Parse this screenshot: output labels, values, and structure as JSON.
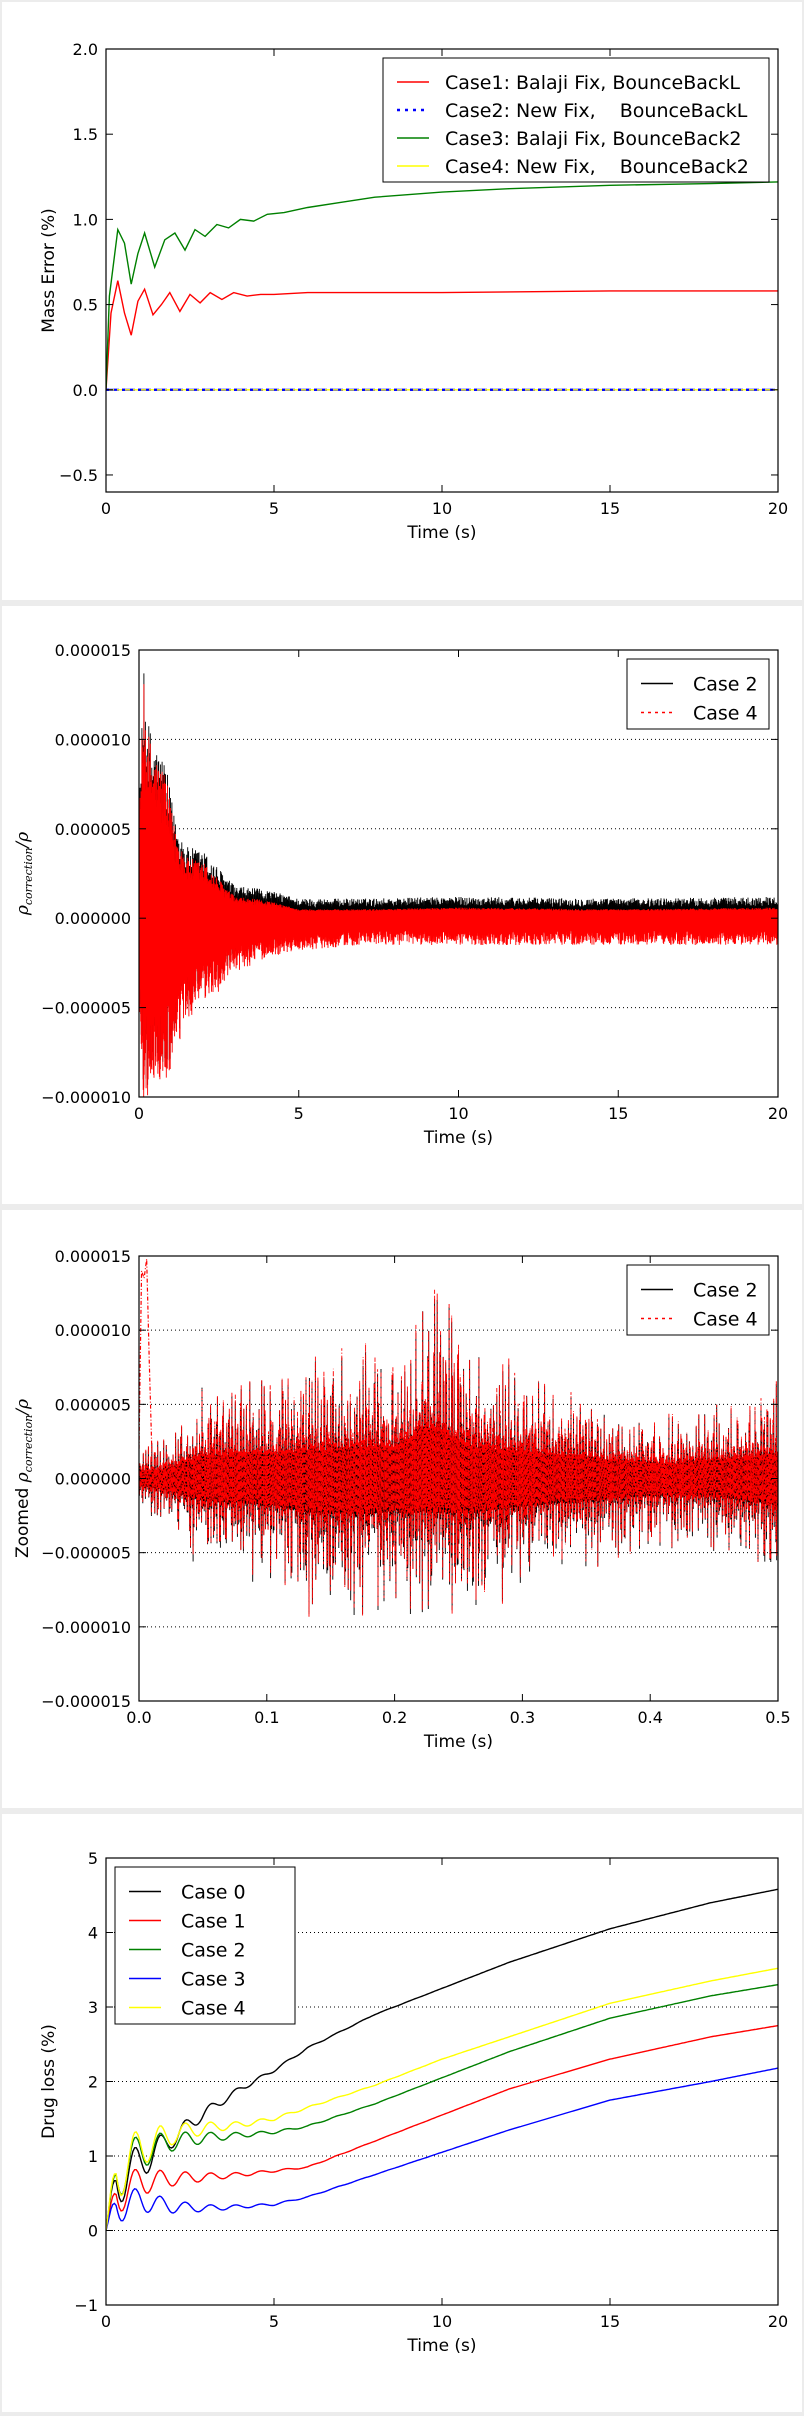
{
  "chart_data": [
    {
      "type": "line",
      "xlabel": "Time (s)",
      "ylabel": "Mass Error (%)",
      "xlim": [
        0,
        20
      ],
      "ylim": [
        -0.6,
        2.0
      ],
      "xticks": [
        0,
        5,
        10,
        15,
        20
      ],
      "xtick_labels": [
        "0",
        "5",
        "10",
        "15",
        "20"
      ],
      "yticks": [
        -0.5,
        0.0,
        0.5,
        1.0,
        1.5,
        2.0
      ],
      "ytick_labels": [
        "−0.5",
        "0.0",
        "0.5",
        "1.0",
        "1.5",
        "2.0"
      ],
      "grid": false,
      "legend_position": "top-right",
      "series": [
        {
          "name": "Case1: Balaji Fix, BounceBackL",
          "color": "#ff0000",
          "style": "solid",
          "x": [
            0,
            0.15,
            0.35,
            0.55,
            0.75,
            0.95,
            1.15,
            1.4,
            1.65,
            1.9,
            2.2,
            2.5,
            2.8,
            3.1,
            3.45,
            3.8,
            4.2,
            4.6,
            5,
            6,
            8,
            10,
            15,
            20
          ],
          "y": [
            0,
            0.45,
            0.64,
            0.45,
            0.32,
            0.52,
            0.59,
            0.44,
            0.5,
            0.57,
            0.46,
            0.56,
            0.51,
            0.57,
            0.53,
            0.57,
            0.55,
            0.56,
            0.56,
            0.57,
            0.57,
            0.57,
            0.58,
            0.58
          ]
        },
        {
          "name": "Case2: New Fix,    BounceBackL",
          "color": "#0000ff",
          "style": "dashdot",
          "x": [
            0,
            20
          ],
          "y": [
            0.0,
            0.0
          ]
        },
        {
          "name": "Case3: Balaji Fix, BounceBack2",
          "color": "#008000",
          "style": "solid",
          "x": [
            0,
            0.1,
            0.35,
            0.55,
            0.75,
            0.95,
            1.15,
            1.45,
            1.75,
            2.05,
            2.35,
            2.65,
            2.95,
            3.3,
            3.65,
            4.0,
            4.4,
            4.8,
            5.3,
            6,
            7,
            8,
            10,
            12,
            15,
            18,
            20
          ],
          "y": [
            0,
            0.55,
            0.94,
            0.86,
            0.62,
            0.8,
            0.92,
            0.72,
            0.88,
            0.92,
            0.82,
            0.94,
            0.9,
            0.97,
            0.95,
            1.0,
            0.99,
            1.03,
            1.04,
            1.07,
            1.1,
            1.13,
            1.16,
            1.18,
            1.2,
            1.21,
            1.22
          ]
        },
        {
          "name": "Case4: New Fix,    BounceBack2",
          "color": "#ffff00",
          "style": "solid",
          "x": [
            0,
            20
          ],
          "y": [
            0.0,
            0.0
          ]
        }
      ]
    },
    {
      "type": "line",
      "xlabel": "Time (s)",
      "ylabel_math": "ρ",
      "ylabel_sub": "correction",
      "ylabel_tail": "/ρ",
      "xlim": [
        0,
        20
      ],
      "ylim": [
        -1e-05,
        1.5e-05
      ],
      "xticks": [
        0,
        5,
        10,
        15,
        20
      ],
      "xtick_labels": [
        "0",
        "5",
        "10",
        "15",
        "20"
      ],
      "yticks": [
        -1e-05,
        -5e-06,
        0,
        5e-06,
        1e-05,
        1.5e-05
      ],
      "ytick_labels": [
        "−0.000010",
        "−0.000005",
        "0.000000",
        "0.000005",
        "0.000010",
        "0.000015"
      ],
      "grid": "horizontal dotted",
      "legend_position": "top-right",
      "envelope": {
        "t": [
          0,
          0.15,
          0.3,
          0.5,
          0.8,
          1.1,
          1.5,
          2,
          2.5,
          3,
          4,
          5,
          7,
          10,
          15,
          20
        ],
        "upper": [
          6e-06,
          1.38e-05,
          1.1e-05,
          9.8e-06,
          9e-06,
          5.8e-06,
          4e-06,
          3.8e-06,
          2.8e-06,
          1.8e-06,
          1.6e-06,
          1.1e-06,
          1.1e-06,
          1.2e-06,
          1.1e-06,
          1.2e-06
        ],
        "lower": [
          -5e-06,
          -9.8e-06,
          -9.4e-06,
          -8.5e-06,
          -9e-06,
          -7.5e-06,
          -5.2e-06,
          -4.2e-06,
          -3.5e-06,
          -2.5e-06,
          -1.6e-06,
          -1.2e-06,
          -9e-07,
          -9e-07,
          -9e-07,
          -9e-07
        ]
      },
      "series": [
        {
          "name": "Case 2",
          "color": "#000000",
          "style": "solid"
        },
        {
          "name": "Case 4",
          "color": "#ff0000",
          "style": "dashdot"
        }
      ]
    },
    {
      "type": "line",
      "xlabel": "Time (s)",
      "ylabel_prefix": "Zoomed ",
      "ylabel_math": "ρ",
      "ylabel_sub": "correction",
      "ylabel_tail": "/ρ",
      "xlim": [
        0,
        0.5
      ],
      "ylim": [
        -1.5e-05,
        1.5e-05
      ],
      "xticks": [
        0,
        0.1,
        0.2,
        0.3,
        0.4,
        0.5
      ],
      "xtick_labels": [
        "0.0",
        "0.1",
        "0.2",
        "0.3",
        "0.4",
        "0.5"
      ],
      "yticks": [
        -1.5e-05,
        -1e-05,
        -5e-06,
        0,
        5e-06,
        1e-05,
        1.5e-05
      ],
      "ytick_labels": [
        "−0.000015",
        "−0.000010",
        "−0.000005",
        "0.000000",
        "0.000005",
        "0.000010",
        "0.000015"
      ],
      "grid": "horizontal dotted",
      "legend_position": "top-right",
      "envelope": {
        "t": [
          0,
          0.02,
          0.05,
          0.1,
          0.14,
          0.18,
          0.2,
          0.23,
          0.26,
          0.3,
          0.34,
          0.38,
          0.42,
          0.46,
          0.5
        ],
        "upper": [
          2e-06,
          2.5e-06,
          6e-06,
          6.5e-06,
          7.5e-06,
          8.5e-06,
          8e-06,
          1.38e-05,
          8.5e-06,
          7.2e-06,
          5.5e-06,
          4.5e-06,
          4e-06,
          5e-06,
          6.2e-06
        ],
        "lower": [
          -2e-06,
          -3e-06,
          -6e-06,
          -6.8e-06,
          -9.5e-06,
          -9.5e-06,
          -8.5e-06,
          -8.8e-06,
          -9.2e-06,
          -7.5e-06,
          -6e-06,
          -5e-06,
          -4.5e-06,
          -5e-06,
          -7e-06
        ]
      },
      "series": [
        {
          "name": "Case 2",
          "color": "#000000",
          "style": "solid"
        },
        {
          "name": "Case 4",
          "color": "#ff0000",
          "style": "dashdot",
          "x": [
            0.0,
            0.002,
            0.004,
            0.006,
            0.008,
            0.01
          ],
          "y": [
            2e-06,
            1.4e-05,
            1.35e-05,
            1.48e-05,
            8e-06,
            2e-06
          ]
        }
      ]
    },
    {
      "type": "line",
      "xlabel": "Time (s)",
      "ylabel": "Drug loss (%)",
      "xlim": [
        0,
        20
      ],
      "ylim": [
        -1,
        5
      ],
      "xticks": [
        0,
        5,
        10,
        15,
        20
      ],
      "xtick_labels": [
        "0",
        "5",
        "10",
        "15",
        "20"
      ],
      "yticks": [
        -1,
        0,
        1,
        2,
        3,
        4,
        5
      ],
      "ytick_labels": [
        "−1",
        "0",
        "1",
        "2",
        "3",
        "4",
        "5"
      ],
      "grid": "horizontal dotted",
      "legend_position": "top-left",
      "series": [
        {
          "name": "Case 0",
          "color": "#000000",
          "style": "solid",
          "base": [
            [
              0,
              0.55
            ],
            [
              1,
              0.9
            ],
            [
              2,
              1.25
            ],
            [
              3,
              1.6
            ],
            [
              4,
              1.9
            ],
            [
              5,
              2.15
            ],
            [
              6,
              2.45
            ],
            [
              8,
              2.9
            ],
            [
              10,
              3.25
            ],
            [
              12,
              3.6
            ],
            [
              15,
              4.05
            ],
            [
              18,
              4.4
            ],
            [
              20,
              4.58
            ]
          ],
          "osc": 0.45
        },
        {
          "name": "Case 1",
          "color": "#ff0000",
          "style": "solid",
          "base": [
            [
              0,
              0.4
            ],
            [
              1,
              0.65
            ],
            [
              2,
              0.7
            ],
            [
              3,
              0.72
            ],
            [
              4,
              0.75
            ],
            [
              5,
              0.8
            ],
            [
              6,
              0.85
            ],
            [
              8,
              1.2
            ],
            [
              10,
              1.55
            ],
            [
              12,
              1.9
            ],
            [
              15,
              2.3
            ],
            [
              18,
              2.6
            ],
            [
              20,
              2.75
            ]
          ],
          "osc": 0.35
        },
        {
          "name": "Case 2",
          "color": "#008000",
          "style": "solid",
          "base": [
            [
              0,
              0.6
            ],
            [
              1,
              1.05
            ],
            [
              2,
              1.2
            ],
            [
              3,
              1.25
            ],
            [
              4,
              1.28
            ],
            [
              5,
              1.32
            ],
            [
              6,
              1.4
            ],
            [
              8,
              1.7
            ],
            [
              10,
              2.05
            ],
            [
              12,
              2.4
            ],
            [
              15,
              2.85
            ],
            [
              18,
              3.15
            ],
            [
              20,
              3.3
            ]
          ],
          "osc": 0.45
        },
        {
          "name": "Case 3",
          "color": "#0000ff",
          "style": "solid",
          "base": [
            [
              0,
              0.3
            ],
            [
              1,
              0.4
            ],
            [
              2,
              0.32
            ],
            [
              3,
              0.3
            ],
            [
              4,
              0.32
            ],
            [
              5,
              0.35
            ],
            [
              6,
              0.45
            ],
            [
              8,
              0.75
            ],
            [
              10,
              1.05
            ],
            [
              12,
              1.35
            ],
            [
              15,
              1.75
            ],
            [
              18,
              2.0
            ],
            [
              20,
              2.18
            ]
          ],
          "osc": 0.3
        },
        {
          "name": "Case 4",
          "color": "#ffff00",
          "style": "solid",
          "base": [
            [
              0,
              0.6
            ],
            [
              1,
              1.1
            ],
            [
              2,
              1.3
            ],
            [
              3,
              1.38
            ],
            [
              4,
              1.42
            ],
            [
              5,
              1.5
            ],
            [
              6,
              1.65
            ],
            [
              8,
              1.95
            ],
            [
              10,
              2.3
            ],
            [
              12,
              2.6
            ],
            [
              15,
              3.05
            ],
            [
              18,
              3.35
            ],
            [
              20,
              3.52
            ]
          ],
          "osc": 0.5
        }
      ]
    }
  ]
}
